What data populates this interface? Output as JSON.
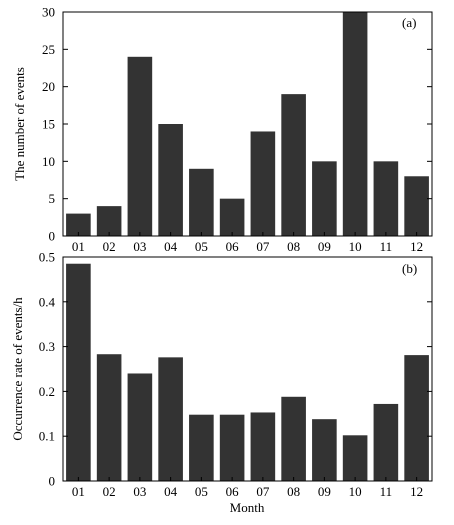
{
  "colors": {
    "bar": "#333333",
    "axis": "#000000",
    "background": "#ffffff"
  },
  "chart_data": [
    {
      "type": "bar",
      "panel_label": "(a)",
      "categories": [
        "01",
        "02",
        "03",
        "04",
        "05",
        "06",
        "07",
        "08",
        "09",
        "10",
        "11",
        "12"
      ],
      "values": [
        3,
        4,
        24,
        15,
        9,
        5,
        14,
        19,
        10,
        30,
        10,
        8
      ],
      "xlabel": "",
      "ylabel": "The number of events",
      "ylim": [
        0,
        30
      ],
      "yticks": [
        "0",
        "5",
        "10",
        "15",
        "20",
        "25",
        "30"
      ],
      "grid": false
    },
    {
      "type": "bar",
      "panel_label": "(b)",
      "categories": [
        "01",
        "02",
        "03",
        "04",
        "05",
        "06",
        "07",
        "08",
        "09",
        "10",
        "11",
        "12"
      ],
      "values": [
        0.485,
        0.283,
        0.24,
        0.276,
        0.148,
        0.148,
        0.153,
        0.188,
        0.138,
        0.102,
        0.172,
        0.281
      ],
      "xlabel": "Month",
      "ylabel": "Occurrence rate of events/h",
      "ylim": [
        0,
        0.5
      ],
      "yticks": [
        "0",
        "0.1",
        "0.2",
        "0.3",
        "0.4",
        "0.5"
      ],
      "grid": false
    }
  ]
}
